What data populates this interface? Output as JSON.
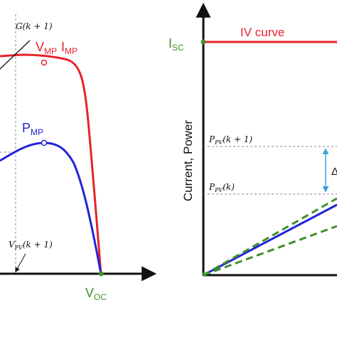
{
  "colors": {
    "iv_curve": "#e8212a",
    "power_curve": "#2323d8",
    "green": "#3f8f2a",
    "blue_arrow": "#3aa0d8",
    "axis": "#111111",
    "guide": "#8a8a8a"
  },
  "left_panel": {
    "g_label": "G(k + 1)",
    "vmp_label": {
      "base": "V",
      "sub": "MP"
    },
    "imp_label": {
      "base": "I",
      "sub": "MP"
    },
    "pmp_label": {
      "base": "P",
      "sub": "MP"
    },
    "vpv_label": "V_PV(k + 1)",
    "voc_label": {
      "base": "V",
      "sub": "OC"
    }
  },
  "right_panel": {
    "isc_label": {
      "base": "I",
      "sub": "SC"
    },
    "iv_curve_label": "IV curve",
    "ylabel": "Current, Power",
    "ppv_k1_label": "P_PV(k + 1)",
    "ppv_k_label": "P_PV(k)",
    "delta_label": "Δ"
  }
}
